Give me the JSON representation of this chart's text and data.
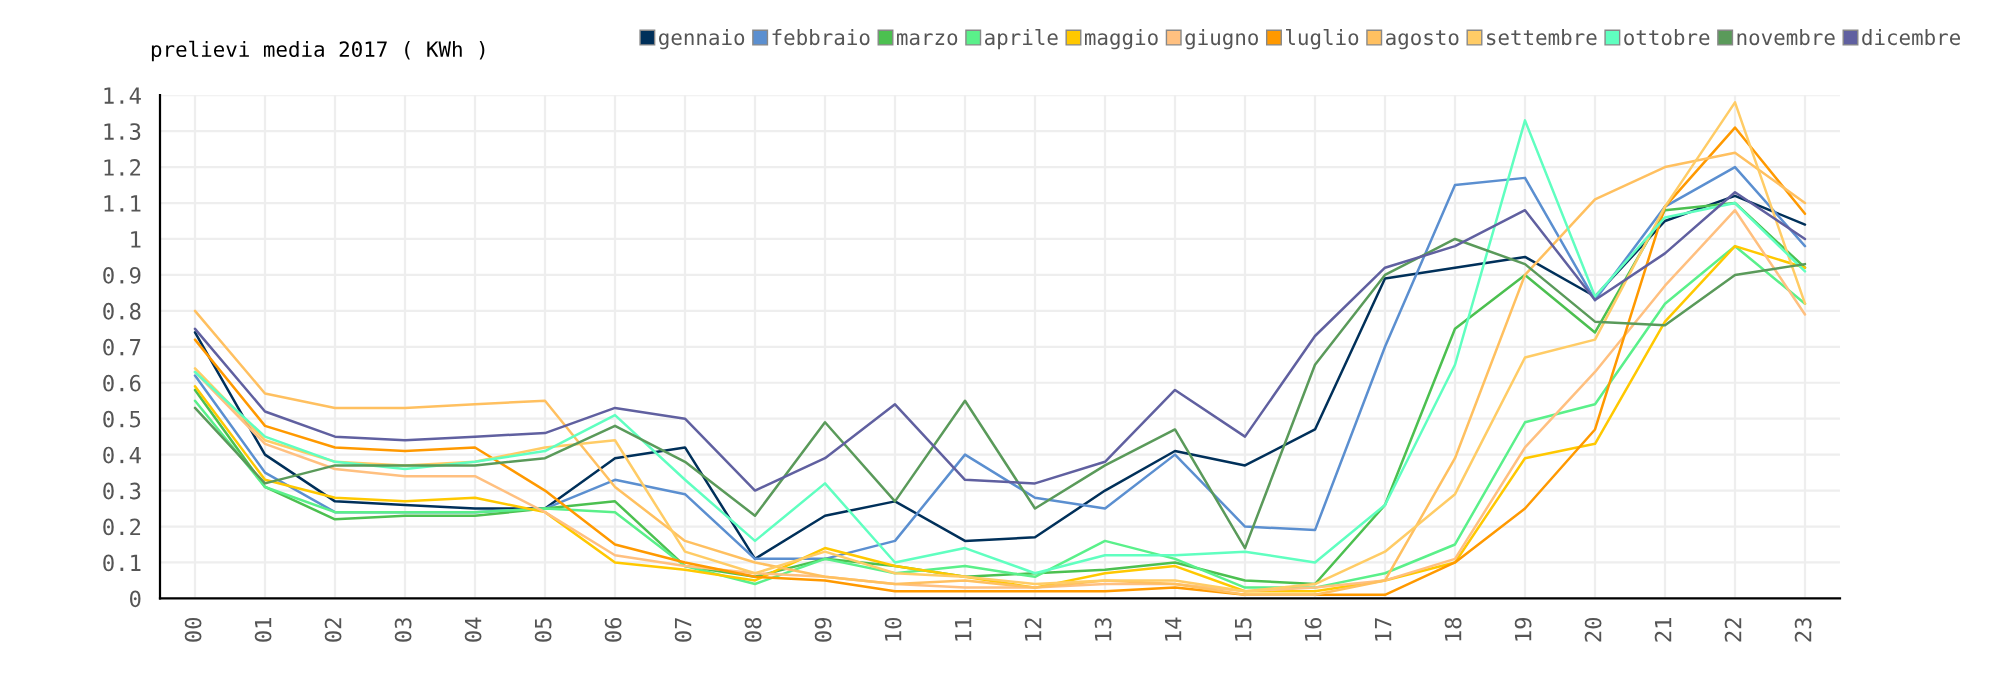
{
  "chart_data": {
    "type": "line",
    "title": "prelievi media 2017 ( KWh )",
    "categories": [
      "00",
      "01",
      "02",
      "03",
      "04",
      "05",
      "06",
      "07",
      "08",
      "09",
      "10",
      "11",
      "12",
      "13",
      "14",
      "15",
      "16",
      "17",
      "18",
      "19",
      "20",
      "21",
      "22",
      "23"
    ],
    "ylim": [
      0,
      1.4
    ],
    "yticks": [
      0,
      0.1,
      0.2,
      0.3,
      0.4,
      0.5,
      0.6,
      0.7,
      0.8,
      0.9,
      {
        "value": 1,
        "label": "1"
      },
      1.1,
      1.2,
      1.3,
      1.4
    ],
    "grid": true,
    "legend": "top",
    "marker": "none",
    "line_style": "solid",
    "series": [
      {
        "name": "gennaio",
        "color": "#00305a",
        "values": [
          0.74,
          0.4,
          0.27,
          0.26,
          0.25,
          0.25,
          0.39,
          0.42,
          0.11,
          0.23,
          0.27,
          0.16,
          0.17,
          0.3,
          0.41,
          0.37,
          0.47,
          0.89,
          0.92,
          0.95,
          0.84,
          1.05,
          1.12,
          1.04
        ]
      },
      {
        "name": "febbraio",
        "color": "#5b8fd0",
        "values": [
          0.62,
          0.35,
          0.24,
          0.24,
          0.24,
          0.25,
          0.33,
          0.29,
          0.11,
          0.11,
          0.16,
          0.4,
          0.28,
          0.25,
          0.4,
          0.2,
          0.19,
          0.7,
          1.15,
          1.17,
          0.83,
          1.09,
          1.2,
          0.98
        ]
      },
      {
        "name": "marzo",
        "color": "#4cc050",
        "values": [
          0.58,
          0.31,
          0.22,
          0.23,
          0.23,
          0.25,
          0.27,
          0.09,
          0.06,
          0.11,
          0.09,
          0.06,
          0.07,
          0.08,
          0.1,
          0.05,
          0.04,
          0.26,
          0.75,
          0.9,
          0.74,
          1.08,
          1.1,
          0.92
        ]
      },
      {
        "name": "aprile",
        "color": "#5af08a",
        "values": [
          0.55,
          0.31,
          0.24,
          0.24,
          0.24,
          0.25,
          0.24,
          0.09,
          0.04,
          0.11,
          0.07,
          0.09,
          0.06,
          0.16,
          0.11,
          0.03,
          0.03,
          0.07,
          0.15,
          0.49,
          0.54,
          0.82,
          0.98,
          0.82
        ]
      },
      {
        "name": "maggio",
        "color": "#ffc800",
        "values": [
          0.59,
          0.33,
          0.28,
          0.27,
          0.28,
          0.24,
          0.1,
          0.08,
          0.05,
          0.14,
          0.09,
          0.06,
          0.03,
          0.07,
          0.09,
          0.02,
          0.02,
          0.05,
          0.1,
          0.39,
          0.43,
          0.77,
          0.98,
          0.92
        ]
      },
      {
        "name": "giugno",
        "color": "#ffc080",
        "values": [
          0.63,
          0.43,
          0.36,
          0.34,
          0.34,
          0.24,
          0.12,
          0.09,
          0.07,
          0.06,
          0.04,
          0.03,
          0.03,
          0.04,
          0.04,
          0.02,
          0.03,
          0.05,
          0.11,
          0.42,
          0.63,
          0.87,
          1.08,
          0.79
        ]
      },
      {
        "name": "luglio",
        "color": "#ff9900",
        "values": [
          0.72,
          0.48,
          0.42,
          0.41,
          0.42,
          0.3,
          0.15,
          0.1,
          0.06,
          0.05,
          0.02,
          0.02,
          0.02,
          0.02,
          0.03,
          0.01,
          0.01,
          0.01,
          0.1,
          0.25,
          0.47,
          1.09,
          1.31,
          1.07
        ]
      },
      {
        "name": "agosto",
        "color": "#ffc060",
        "values": [
          0.8,
          0.57,
          0.53,
          0.53,
          0.54,
          0.55,
          0.31,
          0.16,
          0.1,
          0.06,
          0.04,
          0.05,
          0.03,
          0.05,
          0.04,
          0.01,
          0.01,
          0.05,
          0.39,
          0.9,
          1.11,
          1.2,
          1.24,
          1.1
        ]
      },
      {
        "name": "settembre",
        "color": "#ffcc66",
        "values": [
          0.64,
          0.44,
          0.38,
          0.37,
          0.38,
          0.42,
          0.44,
          0.13,
          0.07,
          0.13,
          0.07,
          0.06,
          0.04,
          0.05,
          0.05,
          0.02,
          0.04,
          0.13,
          0.29,
          0.67,
          0.72,
          1.09,
          1.38,
          0.82
        ]
      },
      {
        "name": "ottobre",
        "color": "#60ffc0",
        "values": [
          0.63,
          0.45,
          0.38,
          0.36,
          0.38,
          0.41,
          0.51,
          0.33,
          0.16,
          0.32,
          0.1,
          0.14,
          0.07,
          0.12,
          0.12,
          0.13,
          0.1,
          0.26,
          0.65,
          1.33,
          0.84,
          1.06,
          1.1,
          0.91
        ]
      },
      {
        "name": "novembre",
        "color": "#5a9a5a",
        "values": [
          0.53,
          0.32,
          0.37,
          0.37,
          0.37,
          0.39,
          0.48,
          0.38,
          0.23,
          0.49,
          0.27,
          0.55,
          0.25,
          0.37,
          0.47,
          0.14,
          0.65,
          0.9,
          1.0,
          0.93,
          0.77,
          0.76,
          0.9,
          0.93
        ]
      },
      {
        "name": "dicembre",
        "color": "#6060a0",
        "values": [
          0.75,
          0.52,
          0.45,
          0.44,
          0.45,
          0.46,
          0.53,
          0.5,
          0.3,
          0.39,
          0.54,
          0.33,
          0.32,
          0.38,
          0.58,
          0.45,
          0.73,
          0.92,
          0.98,
          1.08,
          0.83,
          0.96,
          1.13,
          1.0
        ]
      }
    ]
  }
}
